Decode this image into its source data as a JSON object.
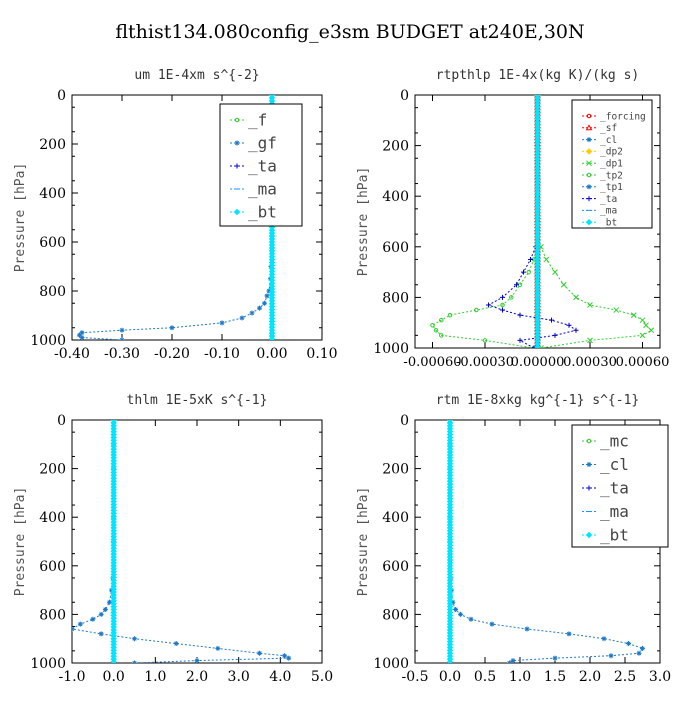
{
  "figure_title": "flthist134.080config_e3sm  BUDGET at240E,30N",
  "colors": {
    "forcing": "#ff0000",
    "sf": "#ff0000",
    "cl": "#1e78c8",
    "mc": "#32cd32",
    "dp2": "#ffcc00",
    "dp1": "#32cd32",
    "tp2": "#32cd32",
    "tp1": "#1e78c8",
    "ta": "#0000cc",
    "ma": "#1e90ff",
    "bt": "#00e5ff",
    "f": "#32cd32",
    "gf": "#1e78c8"
  },
  "chart_data": [
    {
      "type": "line",
      "title": "um   1E-4xm  s^{-2}",
      "ylabel": "Pressure [hPa]",
      "xlim": [
        -0.4,
        0.1
      ],
      "ylim": [
        1000,
        0
      ],
      "xticks": [
        "-0.40",
        "-0.30",
        "-0.20",
        "-0.10",
        "0.00",
        "0.10"
      ],
      "yticks": [
        "0",
        "200",
        "400",
        "600",
        "800",
        "1000"
      ],
      "legend_position": "top-right",
      "y": [
        0,
        50,
        100,
        150,
        200,
        300,
        400,
        500,
        600,
        700,
        750,
        800,
        820,
        850,
        870,
        890,
        910,
        930,
        950,
        960,
        970,
        980,
        990,
        1000
      ],
      "series": [
        {
          "name": "_f",
          "color_key": "f",
          "marker": "circle",
          "values": [
            0,
            0,
            0,
            0,
            0,
            0,
            0,
            0,
            0,
            0,
            0,
            0,
            0,
            0,
            0,
            0,
            0,
            0,
            0,
            0,
            0,
            0,
            0,
            0
          ]
        },
        {
          "name": "_gf",
          "color_key": "gf",
          "marker": "star",
          "values": [
            0,
            0,
            0,
            0,
            0,
            0,
            0,
            0,
            0,
            -0.002,
            -0.003,
            -0.006,
            -0.01,
            -0.015,
            -0.025,
            -0.04,
            -0.06,
            -0.1,
            -0.2,
            -0.3,
            -0.38,
            -0.385,
            -0.38,
            -0.3
          ]
        },
        {
          "name": "_ta",
          "color_key": "ta",
          "marker": "plus",
          "values": [
            0,
            0,
            0,
            0,
            0,
            0,
            0,
            0,
            0,
            0,
            0,
            0,
            0,
            0,
            0,
            0,
            0,
            0,
            0,
            0,
            0,
            0,
            0,
            0
          ]
        },
        {
          "name": "_ma",
          "color_key": "ma",
          "marker": "dash",
          "values": [
            0,
            0,
            0,
            0,
            0,
            0,
            0,
            0,
            0,
            0,
            0,
            0,
            0,
            0,
            0,
            0,
            0,
            0,
            0,
            0,
            0,
            0,
            0,
            0
          ]
        },
        {
          "name": "_bt",
          "color_key": "bt",
          "marker": "diamond",
          "values": [
            0,
            0,
            0,
            0,
            0,
            0,
            0,
            0,
            0,
            0,
            0,
            0,
            0,
            0,
            0,
            0,
            0,
            0,
            0,
            0,
            0,
            0,
            0,
            0
          ]
        }
      ]
    },
    {
      "type": "line",
      "title": "rtpthlp   1E-4x(kg K)/(kg s)",
      "ylabel": "Pressure [hPa]",
      "xlim": [
        -0.0007,
        0.0007
      ],
      "ylim": [
        1000,
        0
      ],
      "xticks": [
        "-0.00060",
        "-0.00030",
        "0.00000",
        "0.00030",
        "0.00060"
      ],
      "yticks": [
        "0",
        "200",
        "400",
        "600",
        "800",
        "1000"
      ],
      "legend_position": "top-right",
      "y": [
        0,
        100,
        200,
        300,
        400,
        500,
        550,
        600,
        650,
        700,
        750,
        800,
        830,
        850,
        870,
        890,
        910,
        930,
        950,
        970,
        1000
      ],
      "series": [
        {
          "name": "_forcing",
          "color_key": "forcing",
          "marker": "circle",
          "values": [
            0,
            0,
            0,
            0,
            0,
            0,
            0,
            0,
            0,
            0,
            0,
            0,
            0,
            0,
            0,
            0,
            0,
            0,
            0,
            0,
            0
          ]
        },
        {
          "name": "_sf",
          "color_key": "sf",
          "marker": "triangle",
          "values": [
            0,
            0,
            0,
            0,
            0,
            0,
            0,
            0,
            0,
            0,
            0,
            0,
            0,
            0,
            0,
            0,
            0,
            0,
            0,
            0,
            0
          ]
        },
        {
          "name": "_cl",
          "color_key": "cl",
          "marker": "star",
          "values": [
            0,
            0,
            0,
            0,
            0,
            0,
            0,
            0,
            0,
            0,
            0,
            0,
            0,
            0,
            0,
            0,
            0,
            0,
            0,
            0,
            0
          ]
        },
        {
          "name": "_dp2",
          "color_key": "dp2",
          "marker": "diamond",
          "values": [
            0,
            0,
            0,
            0,
            0,
            0,
            0,
            0,
            0,
            0,
            0,
            0,
            0,
            0,
            0,
            0,
            0,
            0,
            0,
            0,
            0
          ]
        },
        {
          "name": "_dp1",
          "color_key": "dp1",
          "marker": "x",
          "values": [
            0,
            0,
            0,
            0,
            0,
            0,
            0,
            2e-05,
            5e-05,
            0.0001,
            0.00015,
            0.00022,
            0.0003,
            0.00045,
            0.00055,
            0.0006,
            0.00062,
            0.00065,
            0.0006,
            0.0003,
            2e-05
          ]
        },
        {
          "name": "_tp2",
          "color_key": "tp2",
          "marker": "circle",
          "values": [
            0,
            0,
            0,
            0,
            0,
            0,
            0,
            0,
            -2e-05,
            -5e-05,
            -0.0001,
            -0.00015,
            -0.0002,
            -0.00035,
            -0.0005,
            -0.00055,
            -0.0006,
            -0.00058,
            -0.00055,
            -0.0003,
            -2e-05
          ]
        },
        {
          "name": "_tp1",
          "color_key": "tp1",
          "marker": "star",
          "values": [
            0,
            0,
            0,
            0,
            0,
            0,
            0,
            0,
            0,
            0,
            0,
            0,
            0,
            0,
            0,
            0,
            0,
            0,
            0,
            0,
            0
          ]
        },
        {
          "name": "_ta",
          "color_key": "ta",
          "marker": "plus",
          "values": [
            0,
            0,
            0,
            0,
            0,
            0,
            0,
            -1e-05,
            -4e-05,
            -8e-05,
            -0.00012,
            -0.0002,
            -0.00028,
            -0.0002,
            -0.0001,
            8e-05,
            0.00018,
            0.00022,
            0.0001,
            -0.0001,
            -2e-05
          ]
        },
        {
          "name": "_ma",
          "color_key": "ma",
          "marker": "dash",
          "values": [
            0,
            0,
            0,
            0,
            0,
            0,
            0,
            0,
            0,
            0,
            0,
            0,
            0,
            0,
            0,
            0,
            0,
            0,
            0,
            0,
            0
          ]
        },
        {
          "name": "_bt",
          "color_key": "bt",
          "marker": "diamond",
          "values": [
            0,
            0,
            0,
            0,
            0,
            0,
            0,
            0,
            0,
            0,
            0,
            0,
            0,
            0,
            0,
            0,
            0,
            0,
            0,
            0,
            0
          ]
        }
      ]
    },
    {
      "type": "line",
      "title": "thlm   1E-5xK  s^{-1}",
      "ylabel": "Pressure [hPa]",
      "xlim": [
        -1.0,
        5.0
      ],
      "ylim": [
        1000,
        0
      ],
      "xticks": [
        "-1.0",
        "0.0",
        "1.0",
        "2.0",
        "3.0",
        "4.0",
        "5.0"
      ],
      "yticks": [
        "0",
        "200",
        "400",
        "600",
        "800",
        "1000"
      ],
      "legend_position": "top-right",
      "y": [
        0,
        100,
        200,
        300,
        400,
        500,
        600,
        650,
        700,
        750,
        780,
        800,
        820,
        840,
        860,
        880,
        900,
        920,
        940,
        960,
        970,
        980,
        990,
        1000
      ],
      "series": [
        {
          "name": "_mc",
          "color_key": "mc",
          "marker": "circle",
          "values": [
            0,
            0,
            0,
            0,
            0,
            0,
            0,
            0,
            0,
            0,
            0,
            0,
            0,
            0,
            0,
            0,
            0,
            0,
            0,
            0,
            0,
            0,
            0,
            0
          ]
        },
        {
          "name": "_cl",
          "color_key": "cl",
          "marker": "star",
          "values": [
            0,
            0,
            0,
            0,
            0,
            0,
            0,
            -0.02,
            -0.05,
            -0.1,
            -0.2,
            -0.3,
            -0.5,
            -0.8,
            -1.0,
            -0.3,
            0.5,
            1.5,
            2.5,
            3.5,
            4.1,
            4.2,
            2.0,
            0.5
          ]
        },
        {
          "name": "_ta",
          "color_key": "ta",
          "marker": "plus",
          "values": [
            0,
            0,
            0,
            0,
            0,
            0,
            0,
            0,
            0,
            0,
            0,
            0,
            0,
            0,
            0,
            0,
            0,
            0,
            0,
            0,
            0,
            0,
            0,
            0
          ]
        },
        {
          "name": "_ma",
          "color_key": "ma",
          "marker": "dash",
          "values": [
            0,
            0,
            0,
            0,
            0,
            0,
            0,
            0,
            0,
            0,
            0,
            0,
            0,
            0,
            0,
            0,
            0,
            0,
            0,
            0,
            0,
            0,
            0,
            0
          ]
        },
        {
          "name": "_bt",
          "color_key": "bt",
          "marker": "diamond",
          "values": [
            0,
            0,
            0,
            0,
            0,
            0,
            0,
            0,
            0,
            0,
            0,
            0,
            0,
            0,
            0,
            0,
            0,
            0,
            0,
            0,
            0,
            0,
            0,
            0
          ]
        }
      ]
    },
    {
      "type": "line",
      "title": "rtm   1E-8xkg  kg^{-1} s^{-1}",
      "ylabel": "Pressure [hPa]",
      "xlim": [
        -0.5,
        3.0
      ],
      "ylim": [
        1000,
        0
      ],
      "xticks": [
        "-0.5",
        "0.0",
        "0.5",
        "1.0",
        "1.5",
        "2.0",
        "2.5",
        "3.0"
      ],
      "yticks": [
        "0",
        "200",
        "400",
        "600",
        "800",
        "1000"
      ],
      "legend_position": "top-right",
      "y": [
        0,
        100,
        200,
        300,
        400,
        500,
        600,
        650,
        700,
        750,
        780,
        800,
        820,
        840,
        860,
        880,
        900,
        920,
        940,
        960,
        970,
        980,
        990,
        1000
      ],
      "series": [
        {
          "name": "_mc",
          "color_key": "mc",
          "marker": "circle",
          "values": [
            0,
            0,
            0,
            0,
            0,
            0,
            0,
            0,
            0,
            0,
            0,
            0,
            0,
            0,
            0,
            0,
            0,
            0,
            0,
            0,
            0,
            0,
            0,
            0
          ]
        },
        {
          "name": "_cl",
          "color_key": "cl",
          "marker": "star",
          "values": [
            0,
            0,
            0,
            0,
            0,
            0,
            0,
            0.01,
            0.02,
            0.04,
            0.08,
            0.15,
            0.3,
            0.6,
            1.1,
            1.7,
            2.2,
            2.55,
            2.75,
            2.7,
            2.3,
            1.5,
            0.9,
            0.85
          ]
        },
        {
          "name": "_ta",
          "color_key": "ta",
          "marker": "plus",
          "values": [
            0,
            0,
            0,
            0,
            0,
            0,
            0,
            0,
            0,
            0,
            0,
            0,
            0,
            0,
            0,
            0,
            0,
            0,
            0,
            0,
            0,
            0,
            0,
            0
          ]
        },
        {
          "name": "_ma",
          "color_key": "ma",
          "marker": "dash",
          "values": [
            0,
            0,
            0,
            0,
            0,
            0,
            0,
            0,
            0,
            0,
            0,
            0,
            0,
            0,
            0,
            0,
            0,
            0,
            0,
            0,
            0,
            0,
            0,
            0
          ]
        },
        {
          "name": "_bt",
          "color_key": "bt",
          "marker": "diamond",
          "values": [
            0,
            0,
            0,
            0,
            0,
            0,
            0,
            0,
            0,
            0,
            0,
            0,
            0,
            0,
            0,
            0,
            0,
            0,
            0,
            0,
            0,
            0,
            0,
            0
          ]
        }
      ]
    }
  ]
}
